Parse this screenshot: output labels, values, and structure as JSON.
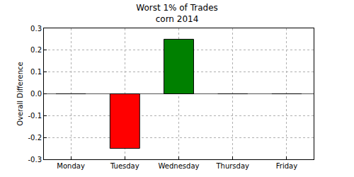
{
  "chart_data": {
    "type": "bar",
    "title": "Worst 1% of Trades\ncorn 2014",
    "y_label": "Overall Difference",
    "categories": [
      "Monday",
      "Tuesday",
      "Wednesday",
      "Thursday",
      "Friday"
    ],
    "values": [
      0,
      -0.25,
      0.25,
      0,
      0
    ],
    "colors": [
      "#008000",
      "#ff0000",
      "#008000",
      "#008000",
      "#008000"
    ],
    "ylim": [
      -0.3,
      0.3
    ],
    "yticks": [
      -0.3,
      -0.2,
      -0.1,
      {
        "value": 0,
        "label": "0.0"
      },
      0.1,
      0.2,
      0.3
    ],
    "grid": true
  }
}
